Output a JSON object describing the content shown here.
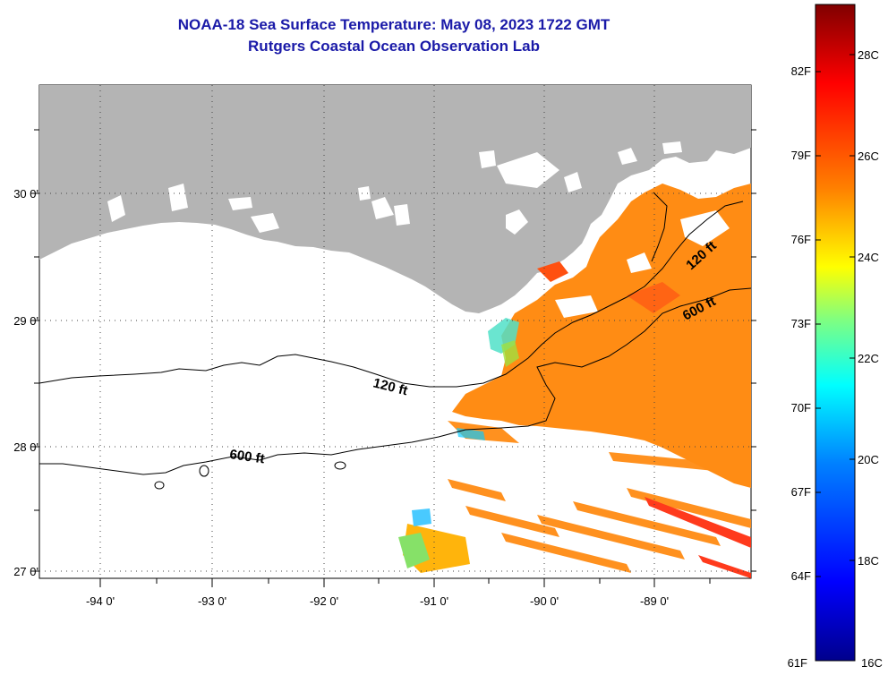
{
  "title": {
    "line1": "NOAA-18 Sea Surface Temperature:  May 08, 2023 1722 GMT",
    "line2": "Rutgers Coastal Ocean Observation Lab"
  },
  "map": {
    "lon_labels": [
      "-94 0'",
      "-93 0'",
      "-92 0'",
      "-91 0'",
      "-90 0'",
      "-89 0'"
    ],
    "lat_labels": [
      "30 0'",
      "29 0'",
      "28 0'",
      "27 0'"
    ],
    "contour_labels": {
      "shelf_120_west": "120 ft",
      "shelf_600_west": "600 ft",
      "shelf_120_east": "120 ft",
      "shelf_600_east": "600 ft"
    },
    "colors": {
      "land": "#b4b4b4",
      "warm_sst": "#ff8c14",
      "contour": "#000000"
    }
  },
  "colorbar": {
    "fahrenheit_labels": [
      "82F",
      "79F",
      "76F",
      "73F",
      "70F",
      "67F",
      "64F",
      "61F"
    ],
    "celsius_labels": [
      "28C",
      "26C",
      "24C",
      "22C",
      "20C",
      "18C",
      "16C"
    ],
    "gradient_colors": [
      "#00008c",
      "#0000ff",
      "#0080ff",
      "#00ffff",
      "#80ff80",
      "#ffff00",
      "#ff8000",
      "#ff0000",
      "#800000"
    ]
  }
}
